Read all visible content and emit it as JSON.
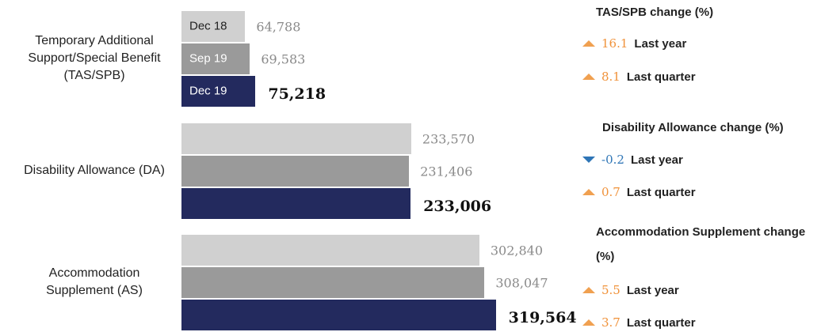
{
  "chart_data": {
    "type": "hbar",
    "categories": [
      "Temporary Additional Support/Special Benefit (TAS/SPB)",
      "Disability Allowance (DA)",
      "Accommodation Supplement (AS)"
    ],
    "series": [
      {
        "name": "Dec 18",
        "color": "#d0d0d0",
        "values": [
          64788,
          233570,
          302840
        ],
        "value_labels": [
          "64,788",
          "233,570",
          "302,840"
        ]
      },
      {
        "name": "Sep 19",
        "color": "#9a9a9a",
        "values": [
          69583,
          231406,
          308047
        ],
        "value_labels": [
          "69,583",
          "231,406",
          "308,047"
        ]
      },
      {
        "name": "Dec 19",
        "color": "#232a5e",
        "values": [
          75218,
          233006,
          319564
        ],
        "value_labels": [
          "75,218",
          "233,006",
          "319,564"
        ]
      }
    ],
    "xlim": [
      0,
      340000
    ]
  },
  "changes": [
    {
      "title": "TAS/SPB change (%)",
      "items": [
        {
          "value": 16.1,
          "label": "Last year"
        },
        {
          "value": 8.1,
          "label": "Last quarter"
        }
      ]
    },
    {
      "title": "Disability Allowance change (%)",
      "items": [
        {
          "value": -0.2,
          "label": "Last year"
        },
        {
          "value": 0.7,
          "label": "Last quarter"
        }
      ]
    },
    {
      "title": "Accommodation Supplement change (%)",
      "items": [
        {
          "value": 5.5,
          "label": "Last year"
        },
        {
          "value": 3.7,
          "label": "Last quarter"
        }
      ]
    }
  ]
}
